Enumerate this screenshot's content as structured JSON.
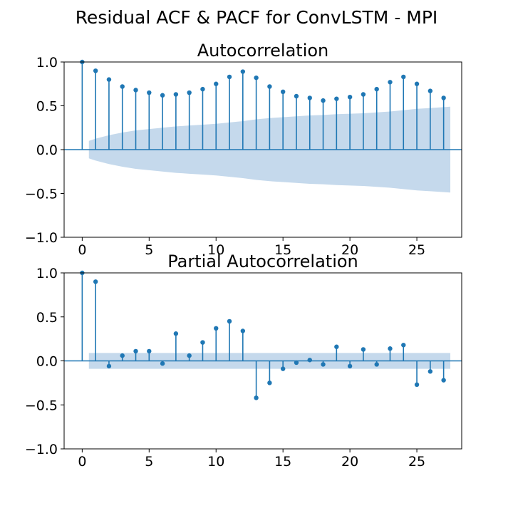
{
  "figure_title": "Residual ACF & PACF for ConvLSTM - MPI",
  "chart_data": [
    {
      "type": "stem",
      "title": "Autocorrelation",
      "xlabel": "",
      "ylabel": "",
      "xlim": [
        -1.35,
        28.35
      ],
      "ylim": [
        -1.0,
        1.0
      ],
      "xticks": [
        0,
        5,
        10,
        15,
        20,
        25
      ],
      "xtick_labels": [
        "0",
        "5",
        "10",
        "15",
        "20",
        "25"
      ],
      "yticks": [
        1.0,
        0.5,
        0.0,
        -0.5,
        -1.0
      ],
      "ytick_labels": [
        "1.0",
        "0.5",
        "0.0",
        "−0.5",
        "−1.0"
      ],
      "grid": false,
      "colors": {
        "stem": "#1f77b4",
        "confidence_band": "#c5d9ec"
      },
      "lags": [
        0,
        1,
        2,
        3,
        4,
        5,
        6,
        7,
        8,
        9,
        10,
        11,
        12,
        13,
        14,
        15,
        16,
        17,
        18,
        19,
        20,
        21,
        22,
        23,
        24,
        25,
        26,
        27
      ],
      "values": [
        1.0,
        0.9,
        0.8,
        0.72,
        0.68,
        0.65,
        0.62,
        0.63,
        0.65,
        0.69,
        0.75,
        0.83,
        0.89,
        0.82,
        0.72,
        0.66,
        0.61,
        0.59,
        0.56,
        0.58,
        0.6,
        0.63,
        0.69,
        0.77,
        0.83,
        0.75,
        0.67,
        0.59
      ],
      "confidence_band": {
        "x": [
          0.5,
          1,
          2,
          3,
          4,
          5,
          6,
          7,
          8,
          9,
          10,
          11,
          12,
          13,
          14,
          15,
          16,
          17,
          18,
          19,
          20,
          21,
          22,
          23,
          24,
          25,
          26,
          27,
          27.5
        ],
        "upper": [
          0.1,
          0.125,
          0.165,
          0.195,
          0.22,
          0.235,
          0.25,
          0.265,
          0.275,
          0.285,
          0.295,
          0.31,
          0.325,
          0.345,
          0.36,
          0.37,
          0.38,
          0.39,
          0.395,
          0.405,
          0.41,
          0.415,
          0.425,
          0.435,
          0.45,
          0.465,
          0.475,
          0.485,
          0.49
        ]
      }
    },
    {
      "type": "stem",
      "title": "Partial Autocorrelation",
      "xlabel": "",
      "ylabel": "",
      "xlim": [
        -1.35,
        28.35
      ],
      "ylim": [
        -1.0,
        1.0
      ],
      "xticks": [
        0,
        5,
        10,
        15,
        20,
        25
      ],
      "xtick_labels": [
        "0",
        "5",
        "10",
        "15",
        "20",
        "25"
      ],
      "yticks": [
        1.0,
        0.5,
        0.0,
        -0.5,
        -1.0
      ],
      "ytick_labels": [
        "1.0",
        "0.5",
        "0.0",
        "−0.5",
        "−1.0"
      ],
      "grid": false,
      "colors": {
        "stem": "#1f77b4",
        "confidence_band": "#c5d9ec"
      },
      "lags": [
        0,
        1,
        2,
        3,
        4,
        5,
        6,
        7,
        8,
        9,
        10,
        11,
        12,
        13,
        14,
        15,
        16,
        17,
        18,
        19,
        20,
        21,
        22,
        23,
        24,
        25,
        26,
        27
      ],
      "values": [
        1.0,
        0.9,
        -0.06,
        0.06,
        0.11,
        0.11,
        -0.03,
        0.31,
        0.06,
        0.21,
        0.37,
        0.45,
        0.34,
        -0.42,
        -0.25,
        -0.09,
        -0.02,
        0.01,
        -0.04,
        0.16,
        -0.06,
        0.13,
        -0.04,
        0.14,
        0.18,
        -0.27,
        -0.12,
        -0.22
      ],
      "confidence_band": {
        "x": [
          0.5,
          27.5
        ],
        "upper": [
          0.09,
          0.09
        ]
      }
    }
  ]
}
